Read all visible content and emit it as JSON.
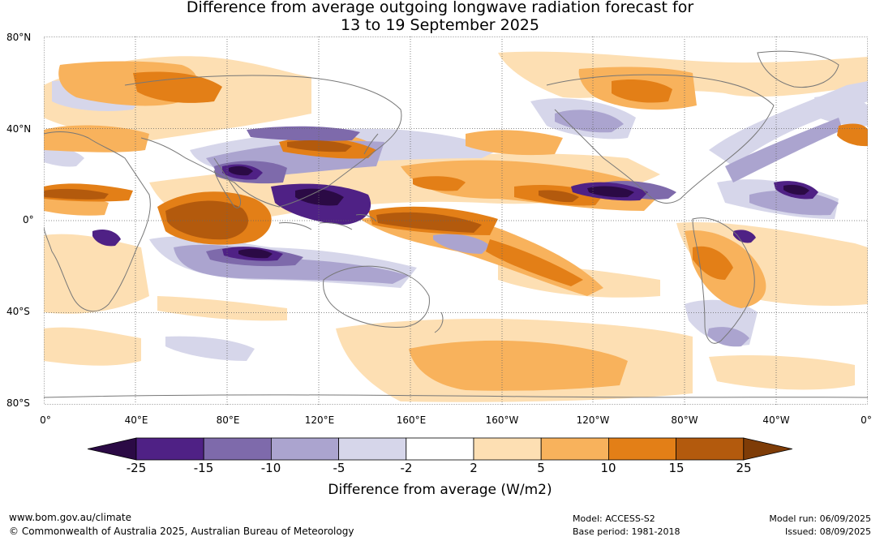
{
  "title": {
    "line1": "Difference from average outgoing longwave radiation forecast for",
    "line2": "13 to 19 September 2025"
  },
  "map": {
    "lat_labels": [
      "80°N",
      "40°N",
      "0°",
      "40°S",
      "80°S"
    ],
    "lon_labels": [
      "0°",
      "40°E",
      "80°E",
      "120°E",
      "160°E",
      "160°W",
      "120°W",
      "80°W",
      "40°W",
      "0°"
    ]
  },
  "colorbar": {
    "title": "Difference from average (W/m2)",
    "ticks": [
      "-25",
      "-15",
      "-10",
      "-5",
      "-2",
      "2",
      "5",
      "10",
      "15",
      "25"
    ],
    "colors": {
      "lt_-25": "#2b0a45",
      "-25_-15": "#4f2185",
      "-15_-10": "#7e6aab",
      "-10_-5": "#aba4cf",
      "-5_-2": "#d6d6ea",
      "-2_2": "#ffffff",
      "2_5": "#fddfb3",
      "5_10": "#f8b25c",
      "10_15": "#e37f17",
      "15_25": "#b35a0d",
      "gt_25": "#7e3c07"
    }
  },
  "footer": {
    "url": "www.bom.gov.au/climate",
    "copyright": "© Commonwealth of Australia 2025, Australian Bureau of Meteorology",
    "model": "Model: ACCESS-S2",
    "base_period": "Base period: 1981-2018",
    "model_run": "Model run: 06/09/2025",
    "issued": "Issued: 08/09/2025"
  }
}
